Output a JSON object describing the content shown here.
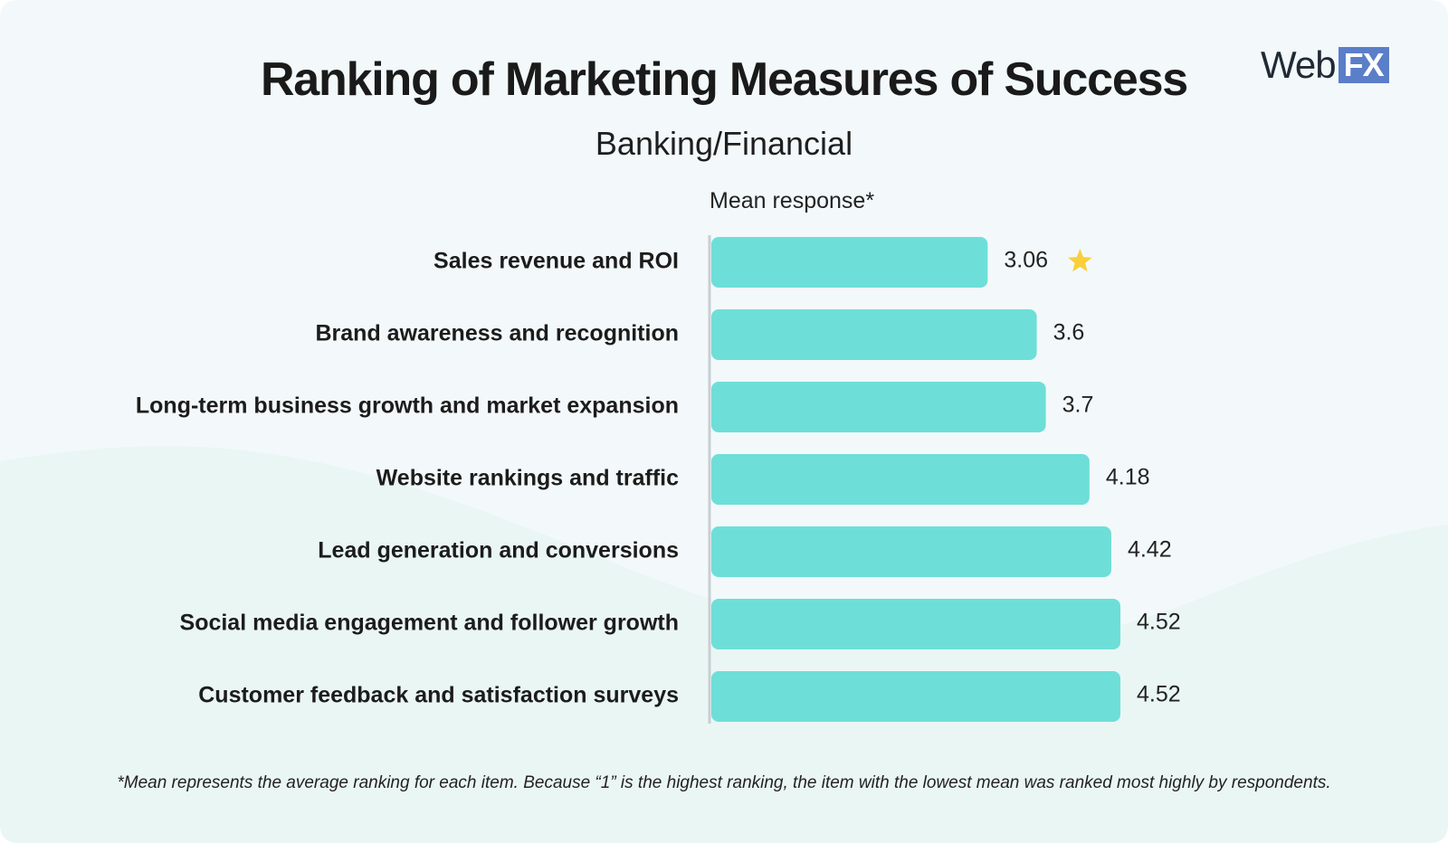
{
  "logo": {
    "web": "Web",
    "fx": "FX"
  },
  "colors": {
    "bar": "#6ddfd8",
    "star": "#f9cf3a",
    "accent": "#5b7ec9"
  },
  "chart_data": {
    "type": "bar",
    "orientation": "horizontal",
    "title": "Ranking of Marketing Measures of Success",
    "subtitle": "Banking/Financial",
    "xlabel": "Mean response*",
    "ylabel": "",
    "categories": [
      "Sales revenue and ROI",
      "Brand awareness and recognition",
      "Long-term business growth and market expansion",
      "Website rankings and traffic",
      "Lead generation and conversions",
      "Social media engagement and follower growth",
      "Customer feedback and satisfaction surveys"
    ],
    "values": [
      3.06,
      3.6,
      3.7,
      4.18,
      4.42,
      4.52,
      4.52
    ],
    "value_labels": [
      "3.06",
      "3.6",
      "3.7",
      "4.18",
      "4.42",
      "4.52",
      "4.52"
    ],
    "highlight": {
      "index": 0,
      "icon": "star-icon"
    },
    "xlim": [
      0,
      4.52
    ],
    "grid": false,
    "footnote": "*Mean represents the average ranking for each item. Because “1” is the highest ranking, the item with the lowest mean was ranked most highly by respondents."
  }
}
